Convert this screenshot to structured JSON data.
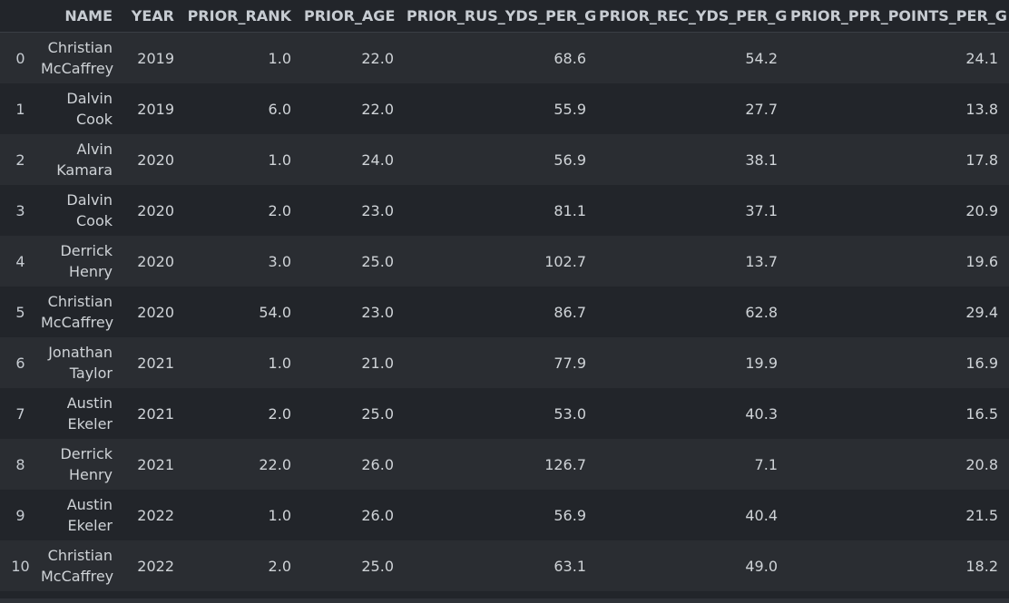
{
  "table": {
    "columns": [
      "",
      "NAME",
      "YEAR",
      "PRIOR_RANK",
      "PRIOR_AGE",
      "PRIOR_RUS_YDS_PER_G",
      "PRIOR_REC_YDS_PER_G",
      "PRIOR_PPR_POINTS_PER_G"
    ],
    "rows": [
      {
        "index": "0",
        "name_line1": "Christian",
        "name_line2": "McCaffrey",
        "year": "2019",
        "prior_rank": "1.0",
        "prior_age": "22.0",
        "rus": "68.6",
        "rec": "54.2",
        "ppr": "24.1"
      },
      {
        "index": "1",
        "name_line1": "Dalvin",
        "name_line2": "Cook",
        "year": "2019",
        "prior_rank": "6.0",
        "prior_age": "22.0",
        "rus": "55.9",
        "rec": "27.7",
        "ppr": "13.8"
      },
      {
        "index": "2",
        "name_line1": "Alvin",
        "name_line2": "Kamara",
        "year": "2020",
        "prior_rank": "1.0",
        "prior_age": "24.0",
        "rus": "56.9",
        "rec": "38.1",
        "ppr": "17.8"
      },
      {
        "index": "3",
        "name_line1": "Dalvin",
        "name_line2": "Cook",
        "year": "2020",
        "prior_rank": "2.0",
        "prior_age": "23.0",
        "rus": "81.1",
        "rec": "37.1",
        "ppr": "20.9"
      },
      {
        "index": "4",
        "name_line1": "Derrick",
        "name_line2": "Henry",
        "year": "2020",
        "prior_rank": "3.0",
        "prior_age": "25.0",
        "rus": "102.7",
        "rec": "13.7",
        "ppr": "19.6"
      },
      {
        "index": "5",
        "name_line1": "Christian",
        "name_line2": "McCaffrey",
        "year": "2020",
        "prior_rank": "54.0",
        "prior_age": "23.0",
        "rus": "86.7",
        "rec": "62.8",
        "ppr": "29.4"
      },
      {
        "index": "6",
        "name_line1": "Jonathan",
        "name_line2": "Taylor",
        "year": "2021",
        "prior_rank": "1.0",
        "prior_age": "21.0",
        "rus": "77.9",
        "rec": "19.9",
        "ppr": "16.9"
      },
      {
        "index": "7",
        "name_line1": "Austin",
        "name_line2": "Ekeler",
        "year": "2021",
        "prior_rank": "2.0",
        "prior_age": "25.0",
        "rus": "53.0",
        "rec": "40.3",
        "ppr": "16.5"
      },
      {
        "index": "8",
        "name_line1": "Derrick",
        "name_line2": "Henry",
        "year": "2021",
        "prior_rank": "22.0",
        "prior_age": "26.0",
        "rus": "126.7",
        "rec": "7.1",
        "ppr": "20.8"
      },
      {
        "index": "9",
        "name_line1": "Austin",
        "name_line2": "Ekeler",
        "year": "2022",
        "prior_rank": "1.0",
        "prior_age": "26.0",
        "rus": "56.9",
        "rec": "40.4",
        "ppr": "21.5"
      },
      {
        "index": "10",
        "name_line1": "Christian",
        "name_line2": "McCaffrey",
        "year": "2022",
        "prior_rank": "2.0",
        "prior_age": "25.0",
        "rus": "63.1",
        "rec": "49.0",
        "ppr": "18.2"
      }
    ]
  },
  "chart_data": {
    "type": "table",
    "columns": [
      "",
      "NAME",
      "YEAR",
      "PRIOR_RANK",
      "PRIOR_AGE",
      "PRIOR_RUS_YDS_PER_G",
      "PRIOR_REC_YDS_PER_G",
      "PRIOR_PPR_POINTS_PER_G"
    ],
    "rows": [
      [
        "0",
        "Christian McCaffrey",
        2019,
        1.0,
        22.0,
        68.6,
        54.2,
        24.1
      ],
      [
        "1",
        "Dalvin Cook",
        2019,
        6.0,
        22.0,
        55.9,
        27.7,
        13.8
      ],
      [
        "2",
        "Alvin Kamara",
        2020,
        1.0,
        24.0,
        56.9,
        38.1,
        17.8
      ],
      [
        "3",
        "Dalvin Cook",
        2020,
        2.0,
        23.0,
        81.1,
        37.1,
        20.9
      ],
      [
        "4",
        "Derrick Henry",
        2020,
        3.0,
        25.0,
        102.7,
        13.7,
        19.6
      ],
      [
        "5",
        "Christian McCaffrey",
        2020,
        54.0,
        23.0,
        86.7,
        62.8,
        29.4
      ],
      [
        "6",
        "Jonathan Taylor",
        2021,
        1.0,
        21.0,
        77.9,
        19.9,
        16.9
      ],
      [
        "7",
        "Austin Ekeler",
        2021,
        2.0,
        25.0,
        53.0,
        40.3,
        16.5
      ],
      [
        "8",
        "Derrick Henry",
        2021,
        22.0,
        26.0,
        126.7,
        7.1,
        20.8
      ],
      [
        "9",
        "Austin Ekeler",
        2022,
        1.0,
        26.0,
        56.9,
        40.4,
        21.5
      ],
      [
        "10",
        "Christian McCaffrey",
        2022,
        2.0,
        25.0,
        63.1,
        49.0,
        18.2
      ]
    ]
  }
}
